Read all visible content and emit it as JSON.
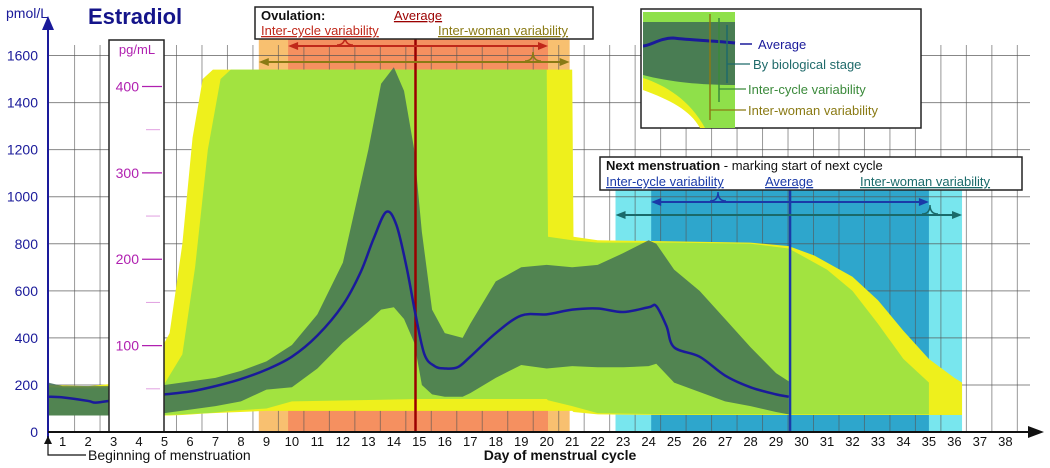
{
  "chart_data": {
    "type": "area",
    "title": "Estradiol",
    "ylabel": "pmol/L",
    "ylabel_secondary": "pg/mL",
    "xlabel": "Day of menstrual cycle",
    "x_note": "Beginning of menstruation",
    "ylim": [
      0,
      1600
    ],
    "yticks": [
      0,
      200,
      400,
      600,
      800,
      1000,
      1200,
      1400,
      1600
    ],
    "yticks_secondary": [
      100,
      200,
      300,
      400
    ],
    "xticks": [
      1,
      2,
      3,
      4,
      5,
      6,
      7,
      8,
      9,
      10,
      11,
      12,
      13,
      14,
      15,
      16,
      17,
      18,
      19,
      20,
      21,
      22,
      23,
      24,
      25,
      26,
      27,
      28,
      29,
      30,
      31,
      32,
      33,
      34,
      35,
      36,
      37,
      38
    ],
    "grid": true,
    "series": [
      {
        "name": "Average",
        "color": "#1a1a9a",
        "points": [
          [
            0.45,
            150
          ],
          [
            1,
            147
          ],
          [
            2,
            132
          ],
          [
            2.3,
            125
          ],
          [
            3,
            135
          ],
          [
            4,
            150
          ],
          [
            5,
            160
          ],
          [
            6,
            172
          ],
          [
            7,
            195
          ],
          [
            8,
            225
          ],
          [
            9,
            265
          ],
          [
            10,
            320
          ],
          [
            11,
            410
          ],
          [
            12,
            540
          ],
          [
            12.7,
            680
          ],
          [
            13.2,
            820
          ],
          [
            13.7,
            935
          ],
          [
            14.1,
            880
          ],
          [
            14.5,
            700
          ],
          [
            14.85,
            500
          ],
          [
            15.2,
            330
          ],
          [
            15.6,
            280
          ],
          [
            16,
            270
          ],
          [
            16.5,
            275
          ],
          [
            17,
            320
          ],
          [
            18,
            420
          ],
          [
            19,
            495
          ],
          [
            20,
            500
          ],
          [
            21,
            520
          ],
          [
            22,
            525
          ],
          [
            23,
            510
          ],
          [
            24,
            530
          ],
          [
            24.3,
            535
          ],
          [
            24.7,
            450
          ],
          [
            25,
            360
          ],
          [
            26,
            320
          ],
          [
            27,
            240
          ],
          [
            28,
            190
          ],
          [
            29,
            160
          ],
          [
            29.5,
            150
          ]
        ]
      },
      {
        "name": "By biological stage",
        "color": "#3d6b55",
        "bands": [
          [
            0.45,
            70,
            210
          ],
          [
            1,
            70,
            195
          ],
          [
            3,
            70,
            195
          ],
          [
            5,
            80,
            200
          ],
          [
            7,
            110,
            230
          ],
          [
            8,
            130,
            260
          ],
          [
            9,
            180,
            300
          ],
          [
            10,
            190,
            370
          ],
          [
            11,
            270,
            500
          ],
          [
            12,
            380,
            720
          ],
          [
            13,
            470,
            1200
          ],
          [
            13.5,
            520,
            1480
          ],
          [
            14,
            530,
            1550
          ],
          [
            14.4,
            480,
            1450
          ],
          [
            14.8,
            380,
            1200
          ],
          [
            15.1,
            200,
            850
          ],
          [
            15.5,
            160,
            520
          ],
          [
            16,
            150,
            420
          ],
          [
            16.7,
            150,
            400
          ],
          [
            17,
            165,
            460
          ],
          [
            18,
            230,
            640
          ],
          [
            19,
            285,
            700
          ],
          [
            20,
            270,
            710
          ],
          [
            21,
            280,
            700
          ],
          [
            22,
            275,
            710
          ],
          [
            23,
            275,
            760
          ],
          [
            24,
            280,
            815
          ],
          [
            24.3,
            290,
            800
          ],
          [
            25,
            210,
            690
          ],
          [
            26,
            170,
            600
          ],
          [
            27,
            130,
            480
          ],
          [
            28,
            110,
            360
          ],
          [
            29,
            85,
            250
          ],
          [
            29.5,
            75,
            215
          ]
        ]
      },
      {
        "name": "Inter-cycle variability",
        "color": "#8fe04a",
        "bands": [
          [
            0.45,
            70,
            190
          ],
          [
            2,
            70,
            185
          ],
          [
            4,
            70,
            195
          ],
          [
            5,
            72,
            205
          ],
          [
            5.7,
            75,
            330
          ],
          [
            6.2,
            78,
            700
          ],
          [
            6.7,
            80,
            1200
          ],
          [
            7.2,
            85,
            1500
          ],
          [
            7.6,
            90,
            1540
          ],
          [
            9,
            100,
            1540
          ],
          [
            10,
            130,
            1540
          ],
          [
            15,
            140,
            1540
          ],
          [
            20,
            140,
            1540
          ],
          [
            20.05,
            135,
            830
          ],
          [
            21,
            110,
            815
          ],
          [
            22,
            80,
            805
          ],
          [
            25,
            75,
            805
          ],
          [
            28,
            75,
            800
          ],
          [
            29.5,
            75,
            780
          ],
          [
            30,
            75,
            750
          ],
          [
            31,
            75,
            690
          ],
          [
            32,
            75,
            600
          ],
          [
            33,
            75,
            460
          ],
          [
            34,
            75,
            310
          ],
          [
            35,
            75,
            210
          ]
        ]
      },
      {
        "name": "Inter-woman variability",
        "color": "#eef01c",
        "bands": [
          [
            0.45,
            70,
            200
          ],
          [
            2,
            70,
            195
          ],
          [
            3,
            70,
            205
          ],
          [
            4,
            70,
            240
          ],
          [
            4.7,
            70,
            320
          ],
          [
            5.2,
            70,
            420
          ],
          [
            5.7,
            72,
            800
          ],
          [
            6.1,
            75,
            1250
          ],
          [
            6.5,
            78,
            1500
          ],
          [
            6.9,
            80,
            1540
          ],
          [
            9,
            90,
            1540
          ],
          [
            21,
            90,
            1540
          ],
          [
            21.05,
            85,
            830
          ],
          [
            22,
            75,
            815
          ],
          [
            25,
            72,
            810
          ],
          [
            28,
            72,
            805
          ],
          [
            29.5,
            72,
            790
          ],
          [
            30.5,
            72,
            750
          ],
          [
            32,
            72,
            660
          ],
          [
            33,
            72,
            560
          ],
          [
            34,
            72,
            430
          ],
          [
            35,
            72,
            310
          ],
          [
            36,
            72,
            230
          ],
          [
            36.3,
            72,
            210
          ]
        ]
      }
    ],
    "ovulation": {
      "title": "Ovulation:",
      "average_label": "Average",
      "inter_cycle_label": "Inter-cycle variability",
      "inter_woman_label": "Inter-woman variability",
      "average_day": 14.85,
      "inter_cycle_range": [
        9.85,
        20.05
      ],
      "inter_woman_range": [
        8.7,
        20.9
      ],
      "average_color": "#9b0000",
      "inter_cycle_color": "#c0281a",
      "inter_woman_color": "#8a7a14"
    },
    "next_menstruation": {
      "title": "Next menstruation",
      "subtitle": " - marking start of next cycle",
      "inter_cycle_label": "Inter-cycle variability",
      "average_label": "Average",
      "inter_woman_label": "Inter-woman variability",
      "average_day": 29.55,
      "inter_cycle_range": [
        24.1,
        35.0
      ],
      "inter_woman_range": [
        22.7,
        36.3
      ],
      "average_color": "#1a3aa8",
      "inter_cycle_color": "#1a3aa8",
      "inter_woman_color": "#1a6a6a"
    },
    "legend": {
      "placement": "top-right",
      "items": [
        "Average",
        "By biological stage",
        "Inter-cycle variability",
        "Inter-woman variability"
      ]
    }
  }
}
